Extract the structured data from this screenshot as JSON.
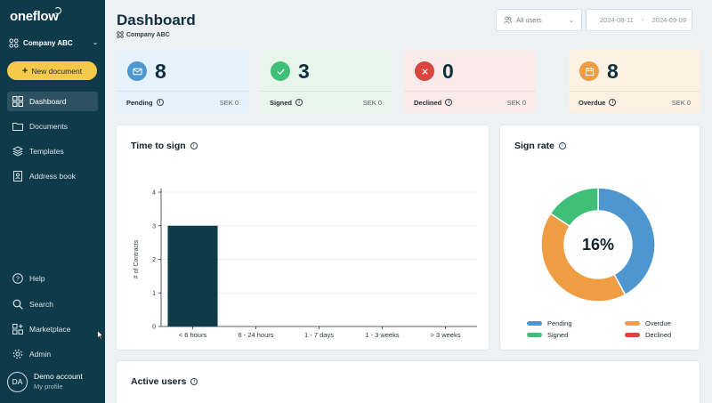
{
  "sidebar": {
    "logo": "oneflow",
    "company": "Company ABC",
    "new_document": "New document",
    "nav_top": [
      {
        "label": "Dashboard",
        "icon": "grid-icon",
        "active": true
      },
      {
        "label": "Documents",
        "icon": "folder-icon",
        "active": false
      },
      {
        "label": "Templates",
        "icon": "layers-icon",
        "active": false
      },
      {
        "label": "Address book",
        "icon": "contact-book-icon",
        "active": false
      }
    ],
    "nav_bottom": [
      {
        "label": "Help",
        "icon": "help-icon"
      },
      {
        "label": "Search",
        "icon": "search-icon"
      },
      {
        "label": "Marketplace",
        "icon": "marketplace-icon"
      },
      {
        "label": "Admin",
        "icon": "gear-icon"
      }
    ],
    "account": {
      "initials": "DA",
      "name": "Demo account",
      "sub": "My profile"
    }
  },
  "header": {
    "title": "Dashboard",
    "subtitle": "Company ABC",
    "users_select": "All users",
    "date_from": "2024-08-11",
    "date_sep": "-",
    "date_to": "2024-09-09"
  },
  "stats": [
    {
      "label": "Pending",
      "count": "8",
      "amount": "SEK 0",
      "bg": "#e6f2fb",
      "icon_bg": "#4d96cf",
      "icon": "envelope-icon"
    },
    {
      "label": "Signed",
      "count": "3",
      "amount": "SEK 0",
      "bg": "#e7f5ec",
      "icon_bg": "#3fbf78",
      "icon": "check-icon"
    },
    {
      "label": "Declined",
      "count": "0",
      "amount": "SEK 0",
      "bg": "#fbeaea",
      "icon_bg": "#d9453f",
      "icon": "x-icon"
    },
    {
      "label": "Overdue",
      "count": "8",
      "amount": "SEK 0",
      "bg": "#fdf1e3",
      "icon_bg": "#ef9d43",
      "icon": "calendar-icon"
    }
  ],
  "time_to_sign": {
    "title": "Time to sign",
    "chart_data": {
      "type": "bar",
      "categories": [
        "< 6 hours",
        "6 - 24 hours",
        "1 - 7 days",
        "1 - 3 weeks",
        "> 3 weeks"
      ],
      "values": [
        3,
        0,
        0,
        0,
        0
      ],
      "ylabel": "# of Contracts",
      "xlabel": "",
      "ylim": [
        0,
        4
      ],
      "yticks": [
        0,
        1,
        2,
        3,
        4
      ],
      "bar_color": "#0f3a4a",
      "grid": true
    }
  },
  "sign_rate": {
    "title": "Sign rate",
    "center_label": "16%",
    "chart_data": {
      "type": "pie",
      "labels": [
        "Pending",
        "Overdue",
        "Signed",
        "Declined"
      ],
      "values": [
        8,
        8,
        3,
        0
      ],
      "colors": [
        "#4d96cf",
        "#ef9d43",
        "#3fbf78",
        "#d9453f"
      ],
      "donut": true,
      "legend": "bottom"
    }
  },
  "active_users": {
    "title": "Active users"
  }
}
